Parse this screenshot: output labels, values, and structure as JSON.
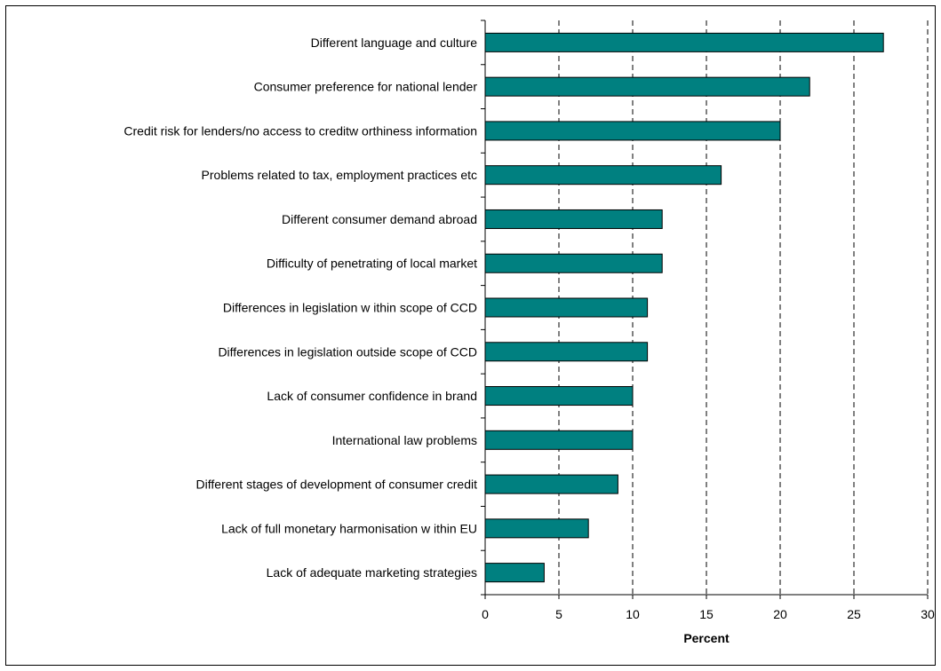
{
  "chart_data": {
    "type": "bar",
    "orientation": "horizontal",
    "title": "",
    "xlabel": "Percent",
    "ylabel": "",
    "xlim": [
      0,
      30
    ],
    "xticks": [
      0,
      5,
      10,
      15,
      20,
      25,
      30
    ],
    "grid": "vertical dashed",
    "legend": "none",
    "bar_color": "#008080",
    "categories": [
      "Different language and culture",
      "Consumer preference for national lender",
      "Credit risk for lenders/no access to creditw orthiness information",
      "Problems related to tax, employment practices etc",
      "Different consumer demand abroad",
      "Difficulty of penetrating of local market",
      "Differences in legislation w ithin scope of CCD",
      "Differences in legislation outside scope of CCD",
      "Lack of consumer confidence in brand",
      "International law  problems",
      "Different stages of development of consumer credit",
      "Lack of full monetary harmonisation w ithin EU",
      "Lack of adequate marketing strategies"
    ],
    "values": [
      27,
      22,
      20,
      16,
      12,
      12,
      11,
      11,
      10,
      10,
      9,
      7,
      4
    ]
  }
}
